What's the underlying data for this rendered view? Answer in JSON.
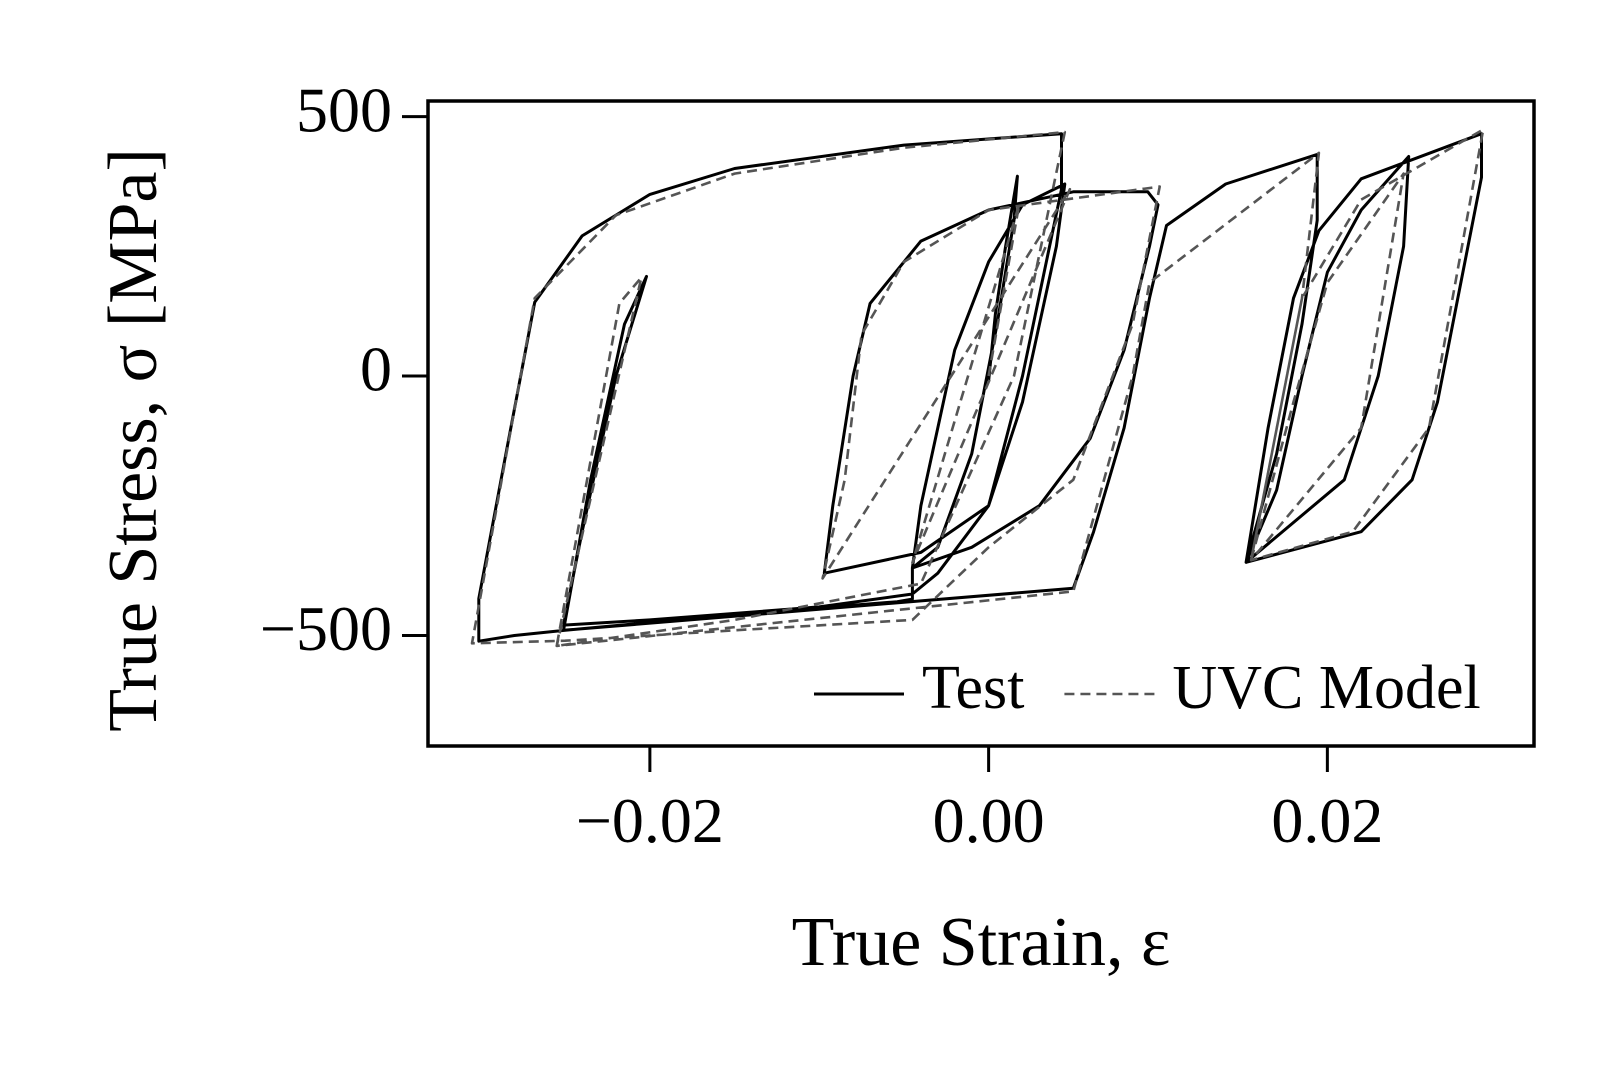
{
  "chart_data": {
    "type": "line",
    "xlabel": "True Strain, ε",
    "ylabel": "True Stress, σ [MPa]",
    "xlim": [
      -0.0331,
      0.0322
    ],
    "ylim": [
      -713,
      530
    ],
    "xticks": [
      {
        "value": -0.02,
        "label": "−0.02"
      },
      {
        "value": 0,
        "label": "0.00"
      },
      {
        "value": 0.02,
        "label": "0.02"
      }
    ],
    "yticks": [
      {
        "value": -500,
        "label": "−500"
      },
      0,
      500
    ],
    "legend": "lower right",
    "series": [
      {
        "name": "Test",
        "color": "#000000",
        "linestyle": "solid",
        "x": [
          0,
          0.0004,
          0.001,
          0.0017,
          0.0015,
          0.0005,
          -0.001,
          -0.003,
          -0.0045,
          -0.004,
          -0.002,
          0,
          0.002,
          0.0045,
          0.004,
          0.002,
          0,
          -0.004,
          -0.0097,
          -0.0092,
          -0.008,
          -0.007,
          -0.004,
          0,
          0.005,
          0.0094,
          0.01,
          0.0095,
          0.008,
          0.006,
          0.003,
          -0.001,
          -0.0045,
          -0.0045,
          -0.0054,
          -0.015,
          -0.025,
          -0.028,
          -0.0301,
          -0.0301,
          -0.0285,
          -0.0268,
          -0.024,
          -0.02,
          -0.015,
          -0.005,
          0.0043,
          0.0043,
          0.002,
          0,
          -0.003,
          -0.0045,
          -0.01,
          -0.02,
          -0.0251,
          -0.024,
          -0.022,
          -0.0202,
          -0.0215,
          -0.0235,
          -0.0251,
          0.005,
          0.0062,
          0.008,
          0.0095,
          0.0105,
          0.014,
          0.0194,
          0.0194,
          0.0185,
          0.017,
          0.0152,
          0.017,
          0.0185,
          0.02,
          0.022,
          0.0248,
          0.0245,
          0.023,
          0.021,
          0.0152,
          0.0165,
          0.018,
          0.0195,
          0.022,
          0.0291,
          0.0291,
          0.028,
          0.0265,
          0.025,
          0.022,
          0.0152
        ],
        "values": [
          -10,
          120,
          250,
          385,
          300,
          100,
          -150,
          -330,
          -370,
          -250,
          50,
          220,
          330,
          370,
          250,
          -50,
          -250,
          -340,
          -380,
          -250,
          0,
          140,
          260,
          320,
          355,
          355,
          330,
          250,
          50,
          -120,
          -250,
          -330,
          -370,
          -430,
          -435,
          -460,
          -490,
          -500,
          -511,
          -429,
          -150,
          142,
          270,
          350,
          400,
          445,
          467,
          360,
          0,
          -250,
          -380,
          -420,
          -445,
          -470,
          -480,
          -300,
          0,
          192,
          100,
          -200,
          -490,
          -409,
          -300,
          -100,
          150,
          290,
          370,
          427,
          300,
          100,
          -150,
          -359,
          -220,
          0,
          200,
          320,
          423,
          250,
          0,
          -200,
          -359,
          -100,
          150,
          280,
          380,
          467,
          383,
          200,
          -50,
          -200,
          -300,
          -359
        ]
      },
      {
        "name": "UVC Model",
        "color": "#555555",
        "linestyle": "dashed",
        "x": [
          0,
          0.0018,
          -0.0045,
          0.0048,
          -0.0098,
          -0.0085,
          -0.0075,
          -0.005,
          0,
          0.0101,
          0.0085,
          0.005,
          0,
          -0.0045,
          -0.015,
          -0.025,
          -0.0305,
          -0.0268,
          -0.022,
          -0.015,
          -0.005,
          0.0045,
          0.0015,
          -0.004,
          -0.015,
          -0.0255,
          -0.0218,
          -0.0205,
          -0.0255,
          0.005,
          0.0085,
          0.0095,
          0.0195,
          0.0185,
          0.0155,
          0.018,
          0.02,
          0.0245,
          0.022,
          0.0155,
          0.0185,
          0.022,
          0.0292,
          0.026,
          0.0215,
          0.0155
        ],
        "values": [
          0,
          330,
          -360,
          360,
          -390,
          -200,
          80,
          220,
          320,
          365,
          100,
          -200,
          -330,
          -470,
          -490,
          -510,
          -515,
          150,
          310,
          390,
          440,
          470,
          0,
          -400,
          -470,
          -520,
          140,
          190,
          -520,
          -415,
          0,
          180,
          430,
          150,
          -355,
          -50,
          180,
          390,
          -100,
          -355,
          150,
          340,
          475,
          -100,
          -300,
          -355
        ]
      }
    ]
  }
}
